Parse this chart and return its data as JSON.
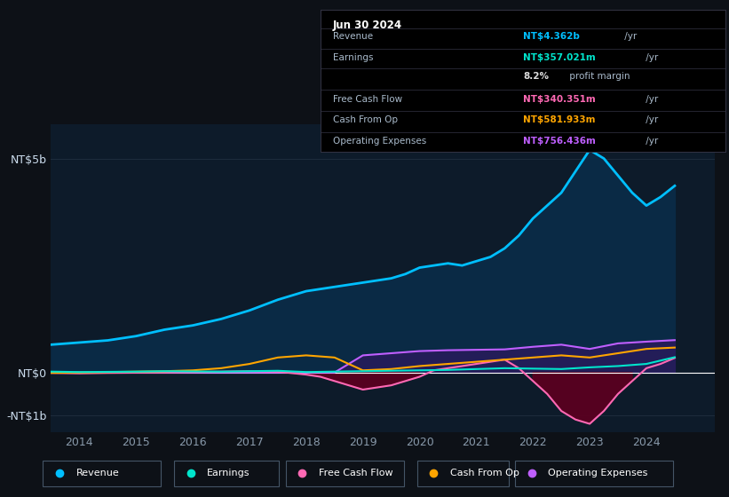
{
  "bg_color": "#0d1117",
  "plot_bg_color": "#0d1b2a",
  "grid_color": "#1e2d3d",
  "title_box_bg": "#000000",
  "title_box_border": "#333344",
  "date_label": "Jun 30 2024",
  "info_rows": [
    {
      "label": "Revenue",
      "value": "NT$4.362b",
      "value_color": "#00bfff",
      "suffix": " /yr"
    },
    {
      "label": "Earnings",
      "value": "NT$357.021m",
      "value_color": "#00e5cc",
      "suffix": " /yr"
    },
    {
      "label": "",
      "value": "8.2%",
      "value_color": "#dddddd",
      "suffix": " profit margin"
    },
    {
      "label": "Free Cash Flow",
      "value": "NT$340.351m",
      "value_color": "#ff69b4",
      "suffix": " /yr"
    },
    {
      "label": "Cash From Op",
      "value": "NT$581.933m",
      "value_color": "#ffa500",
      "suffix": " /yr"
    },
    {
      "label": "Operating Expenses",
      "value": "NT$756.436m",
      "value_color": "#bf5fff",
      "suffix": " /yr"
    }
  ],
  "ytick_labels": [
    "NT$5b",
    "NT$0",
    "-NT$1b"
  ],
  "ytick_values": [
    5000000000,
    0,
    -1000000000
  ],
  "xtick_labels": [
    "2014",
    "2015",
    "2016",
    "2017",
    "2018",
    "2019",
    "2020",
    "2021",
    "2022",
    "2023",
    "2024"
  ],
  "ylim": [
    -1400000000,
    5800000000
  ],
  "xlim": [
    2013.5,
    2025.2
  ],
  "revenue_x": [
    2013.5,
    2014,
    2014.5,
    2015,
    2015.5,
    2016,
    2016.5,
    2017,
    2017.5,
    2018,
    2018.5,
    2019,
    2019.25,
    2019.5,
    2019.75,
    2020,
    2020.25,
    2020.5,
    2020.75,
    2021,
    2021.25,
    2021.5,
    2021.75,
    2022,
    2022.25,
    2022.5,
    2022.75,
    2023,
    2023.25,
    2023.5,
    2023.75,
    2024,
    2024.25,
    2024.5
  ],
  "revenue_y": [
    650000000,
    700000000,
    750000000,
    850000000,
    1000000000,
    1100000000,
    1250000000,
    1450000000,
    1700000000,
    1900000000,
    2000000000,
    2100000000,
    2150000000,
    2200000000,
    2300000000,
    2450000000,
    2500000000,
    2550000000,
    2500000000,
    2600000000,
    2700000000,
    2900000000,
    3200000000,
    3600000000,
    3900000000,
    4200000000,
    4700000000,
    5200000000,
    5000000000,
    4600000000,
    4200000000,
    3900000000,
    4100000000,
    4362000000
  ],
  "revenue_color": "#00bfff",
  "revenue_fill": "#0a2a45",
  "revenue_lw": 2.0,
  "earnings_x": [
    2013.5,
    2014,
    2014.5,
    2015,
    2015.5,
    2016,
    2016.5,
    2017,
    2017.5,
    2018,
    2018.5,
    2019,
    2019.5,
    2020,
    2020.5,
    2021,
    2021.5,
    2022,
    2022.5,
    2023,
    2023.5,
    2024,
    2024.5
  ],
  "earnings_y": [
    20000000,
    10000000,
    15000000,
    20000000,
    30000000,
    25000000,
    20000000,
    30000000,
    40000000,
    10000000,
    20000000,
    30000000,
    40000000,
    50000000,
    60000000,
    80000000,
    100000000,
    90000000,
    80000000,
    120000000,
    150000000,
    200000000,
    357000000
  ],
  "earnings_color": "#00e5cc",
  "earnings_lw": 1.5,
  "fcf_x": [
    2013.5,
    2014,
    2014.5,
    2015,
    2015.5,
    2016,
    2016.5,
    2017,
    2017.5,
    2018,
    2018.25,
    2018.5,
    2018.75,
    2019,
    2019.25,
    2019.5,
    2019.75,
    2020,
    2020.25,
    2020.5,
    2020.75,
    2021,
    2021.25,
    2021.5,
    2021.75,
    2022,
    2022.25,
    2022.5,
    2022.75,
    2023,
    2023.25,
    2023.5,
    2023.75,
    2024,
    2024.25,
    2024.5
  ],
  "fcf_y": [
    -10000000,
    -20000000,
    -10000000,
    -5000000,
    0,
    10000000,
    20000000,
    30000000,
    20000000,
    -50000000,
    -100000000,
    -200000000,
    -300000000,
    -400000000,
    -350000000,
    -300000000,
    -200000000,
    -100000000,
    50000000,
    100000000,
    150000000,
    200000000,
    250000000,
    300000000,
    100000000,
    -200000000,
    -500000000,
    -900000000,
    -1100000000,
    -1200000000,
    -900000000,
    -500000000,
    -200000000,
    100000000,
    200000000,
    340000000
  ],
  "fcf_color": "#ff69b4",
  "fcf_fill": "#5a0020",
  "fcf_lw": 1.5,
  "cfo_x": [
    2013.5,
    2014,
    2014.5,
    2015,
    2015.5,
    2016,
    2016.5,
    2017,
    2017.5,
    2018,
    2018.5,
    2019,
    2019.5,
    2020,
    2020.5,
    2021,
    2021.5,
    2022,
    2022.5,
    2023,
    2023.5,
    2024,
    2024.5
  ],
  "cfo_y": [
    -10000000,
    0,
    10000000,
    20000000,
    30000000,
    50000000,
    100000000,
    200000000,
    350000000,
    400000000,
    350000000,
    50000000,
    80000000,
    150000000,
    200000000,
    250000000,
    300000000,
    350000000,
    400000000,
    350000000,
    450000000,
    550000000,
    582000000
  ],
  "cfo_color": "#ffa500",
  "cfo_lw": 1.5,
  "opex_x": [
    2013.5,
    2014,
    2014.5,
    2015,
    2015.5,
    2016,
    2016.5,
    2017,
    2017.5,
    2018,
    2018.5,
    2019,
    2019.5,
    2020,
    2020.5,
    2021,
    2021.5,
    2022,
    2022.5,
    2023,
    2023.5,
    2024,
    2024.5
  ],
  "opex_y": [
    0,
    0,
    0,
    0,
    0,
    0,
    0,
    0,
    0,
    0,
    0,
    400000000,
    450000000,
    500000000,
    520000000,
    530000000,
    540000000,
    600000000,
    650000000,
    550000000,
    680000000,
    720000000,
    756000000
  ],
  "opex_color": "#bf5fff",
  "opex_fill": "#2a1a5e",
  "opex_lw": 1.5,
  "legend": [
    {
      "label": "Revenue",
      "color": "#00bfff"
    },
    {
      "label": "Earnings",
      "color": "#00e5cc"
    },
    {
      "label": "Free Cash Flow",
      "color": "#ff69b4"
    },
    {
      "label": "Cash From Op",
      "color": "#ffa500"
    },
    {
      "label": "Operating Expenses",
      "color": "#bf5fff"
    }
  ],
  "zero_line_color": "#ffffff",
  "zero_line_lw": 0.8,
  "label_color": "#8899aa",
  "tick_label_color": "#ccddee"
}
